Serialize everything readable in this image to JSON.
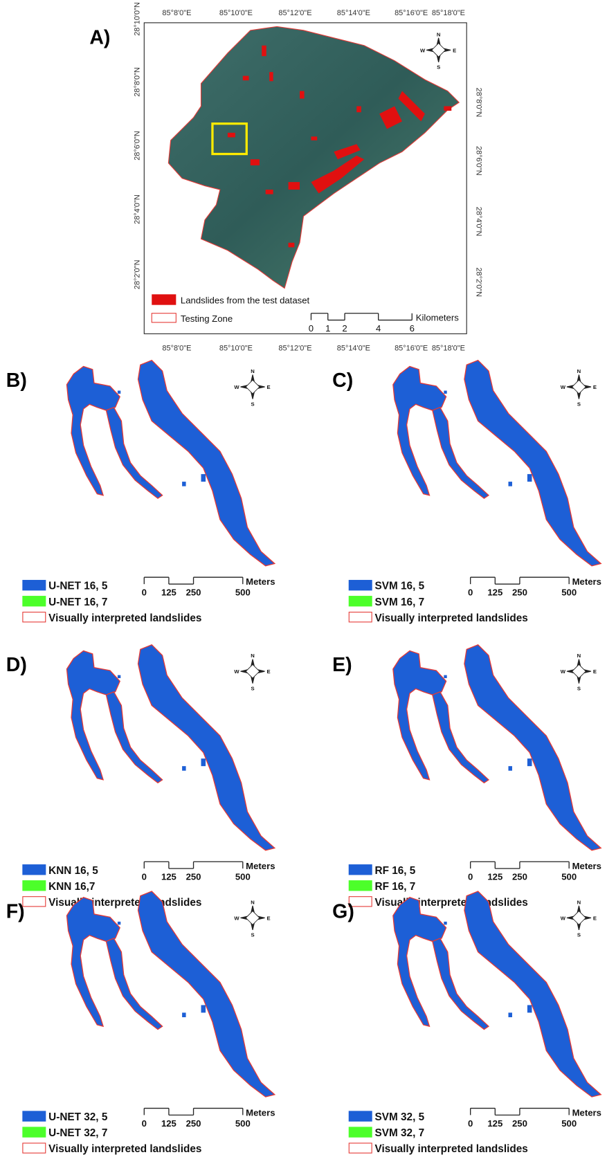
{
  "panels": [
    {
      "label": "A)",
      "top_ticks": [
        "85°8'0\"E",
        "85°10'0\"E",
        "85°12'0\"E",
        "85°14'0\"E",
        "85°16'0\"E",
        "85°18'0\"E"
      ],
      "bottom_ticks": [
        "85°8'0\"E",
        "85°10'0\"E",
        "85°12'0\"E",
        "85°14'0\"E",
        "85°16'0\"E",
        "85°18'0\"E"
      ],
      "left_ticks": [
        "28°10'0\"N",
        "28°8'0\"N",
        "28°6'0\"N",
        "28°4'0\"N",
        "28°2'0\"N"
      ],
      "right_ticks": [
        "28°8'0\"N",
        "28°6'0\"N",
        "28°4'0\"N",
        "28°2'0\"N"
      ],
      "legend": [
        "Landslides from the test dataset",
        "Testing Zone"
      ],
      "scale": {
        "ticks": [
          0,
          1,
          2,
          4,
          6
        ],
        "unit": "Kilometers"
      },
      "compass": [
        "N",
        "E",
        "S",
        "W"
      ]
    },
    {
      "label": "B)",
      "legend": [
        "U-NET 16, 5",
        "U-NET 16, 7",
        "Visually interpreted landslides"
      ],
      "scale": {
        "ticks": [
          0,
          125,
          250,
          500
        ],
        "unit": "Meters"
      },
      "compass": [
        "N",
        "E",
        "S",
        "W"
      ]
    },
    {
      "label": "C)",
      "legend": [
        "SVM 16, 5",
        "SVM 16, 7",
        "Visually interpreted landslides"
      ],
      "scale": {
        "ticks": [
          0,
          125,
          250,
          500
        ],
        "unit": "Meters"
      },
      "compass": [
        "N",
        "E",
        "S",
        "W"
      ]
    },
    {
      "label": "D)",
      "legend": [
        "KNN 16, 5",
        "KNN 16,7",
        "Visually interpreted landslides"
      ],
      "scale": {
        "ticks": [
          0,
          125,
          250,
          500
        ],
        "unit": "Meters"
      },
      "compass": [
        "N",
        "E",
        "S",
        "W"
      ]
    },
    {
      "label": "E)",
      "legend": [
        "RF 16, 5",
        "RF 16, 7",
        "Visually interpreted landslides"
      ],
      "scale": {
        "ticks": [
          0,
          125,
          250,
          500
        ],
        "unit": "Meters"
      },
      "compass": [
        "N",
        "E",
        "S",
        "W"
      ]
    },
    {
      "label": "F)",
      "legend": [
        "U-NET 32, 5",
        "U-NET 32, 7",
        "Visually interpreted landslides"
      ],
      "scale": {
        "ticks": [
          0,
          125,
          250,
          500
        ],
        "unit": "Meters"
      },
      "compass": [
        "N",
        "E",
        "S",
        "W"
      ]
    },
    {
      "label": "G)",
      "legend": [
        "SVM 32, 5",
        "SVM 32, 7",
        "Visually interpreted landslides"
      ],
      "scale": {
        "ticks": [
          0,
          125,
          250,
          500
        ],
        "unit": "Meters"
      },
      "compass": [
        "N",
        "E",
        "S",
        "W"
      ]
    }
  ]
}
